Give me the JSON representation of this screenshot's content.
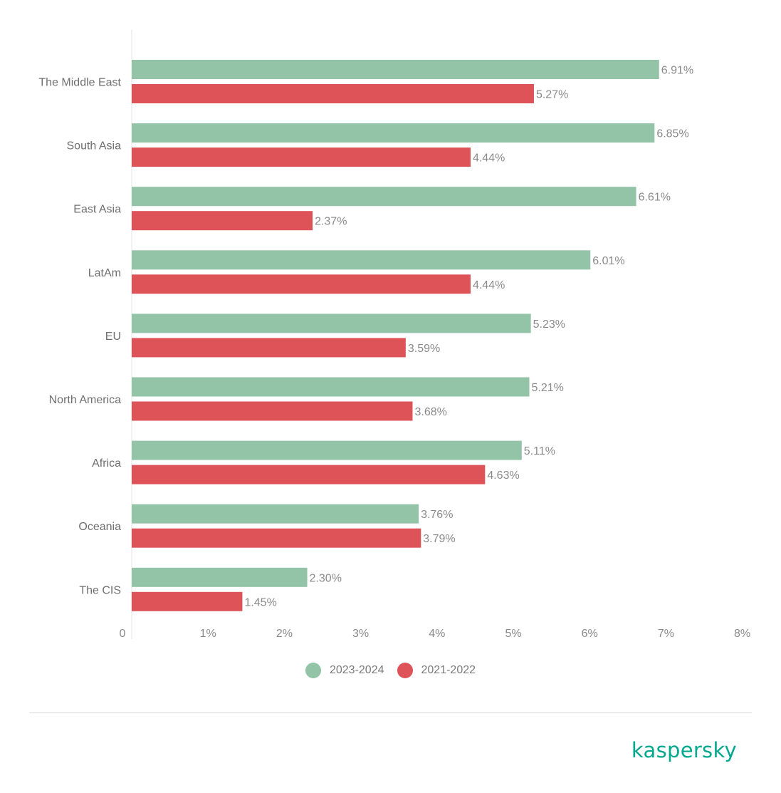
{
  "chart_data": {
    "type": "bar",
    "orientation": "horizontal",
    "categories": [
      "The Middle East",
      "South Asia",
      "East Asia",
      "LatAm",
      "EU",
      "North America",
      "Africa",
      "Oceania",
      "The CIS"
    ],
    "series": [
      {
        "name": "2023-2024",
        "color": "#93c4a8",
        "values": [
          6.91,
          6.85,
          6.61,
          6.01,
          5.23,
          5.21,
          5.11,
          3.76,
          2.3
        ],
        "labels": [
          "6.91%",
          "6.85%",
          "6.61%",
          "6.01%",
          "5.23%",
          "5.21%",
          "5.11%",
          "3.76%",
          "2.30%"
        ]
      },
      {
        "name": "2021-2022",
        "color": "#de5358",
        "values": [
          5.27,
          4.44,
          2.37,
          4.44,
          3.59,
          3.68,
          4.63,
          3.79,
          1.45
        ],
        "labels": [
          "5.27%",
          "4.44%",
          "2.37%",
          "4.44%",
          "3.59%",
          "3.68%",
          "4.63%",
          "3.79%",
          "1.45%"
        ]
      }
    ],
    "xlim": [
      0,
      8
    ],
    "x_ticks": [
      0,
      1,
      2,
      3,
      4,
      5,
      6,
      7,
      8
    ],
    "x_tick_labels": [
      "0",
      "1%",
      "2%",
      "3%",
      "4%",
      "5%",
      "6%",
      "7%",
      "8%"
    ],
    "grid": false,
    "legend_position": "bottom-center"
  },
  "legend": {
    "items": [
      {
        "label": "2023-2024",
        "color": "#93c4a8"
      },
      {
        "label": "2021-2022",
        "color": "#de5358"
      }
    ]
  },
  "brand": {
    "logo_text": "kaspersky",
    "color": "#00a88e"
  }
}
